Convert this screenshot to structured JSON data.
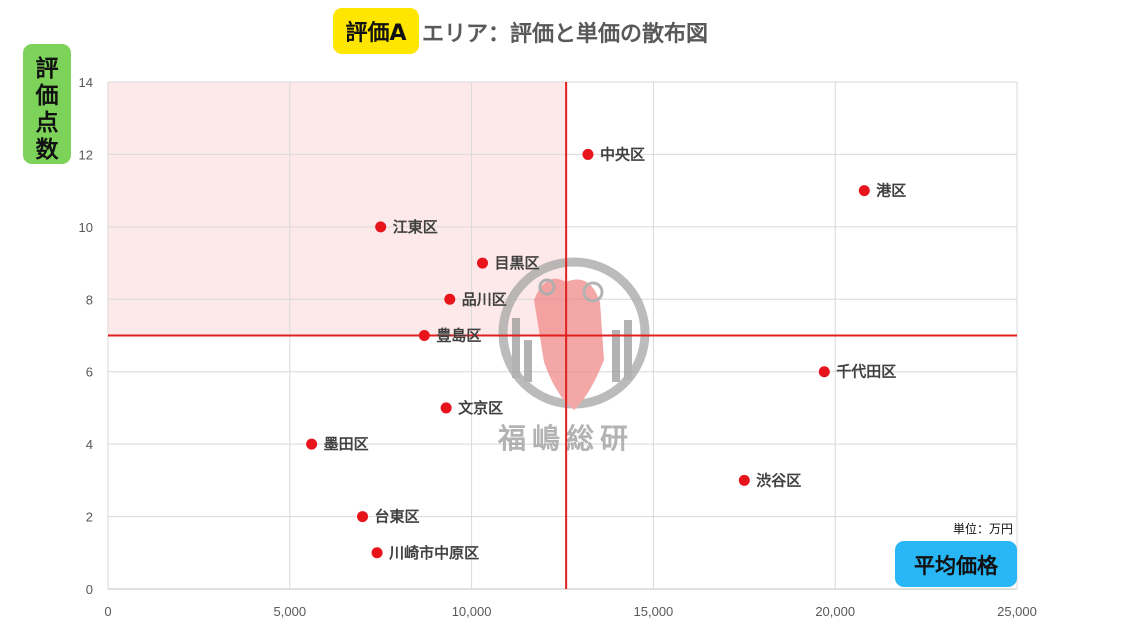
{
  "title": {
    "badge": "評価A",
    "text": "エリア：評価と単価の散布図",
    "badge_color": "#ffe600"
  },
  "ylabel": {
    "text": "評価点数",
    "color": "#7dd35a"
  },
  "xlabel": {
    "text": "平均価格",
    "color": "#29b6f6"
  },
  "unit_note": "単位：万円",
  "watermark": {
    "text": "福嶋総研",
    "icon": "logo-emblem-icon"
  },
  "chart_data": {
    "type": "scatter",
    "xlim": [
      0,
      25000
    ],
    "ylim": [
      0,
      14
    ],
    "x_ticks": [
      0,
      5000,
      10000,
      15000,
      20000,
      25000
    ],
    "x_tick_labels": [
      "0",
      "5,000",
      "10,000",
      "15,000",
      "20,000",
      "25,000"
    ],
    "y_ticks": [
      0,
      2,
      4,
      6,
      8,
      10,
      12,
      14
    ],
    "y_tick_labels": [
      "0",
      "2",
      "4",
      "6",
      "8",
      "10",
      "12",
      "14"
    ],
    "grid": true,
    "point_color": "#e8141c",
    "quadrant_lines": {
      "x": 12600,
      "y": 7,
      "color": "#e02020"
    },
    "highlight_region": {
      "x": [
        0,
        12600
      ],
      "y": [
        7,
        14
      ],
      "color": "#fde9e9"
    },
    "points": [
      {
        "label": "中央区",
        "x": 13200,
        "y": 12
      },
      {
        "label": "港区",
        "x": 20800,
        "y": 11
      },
      {
        "label": "江東区",
        "x": 7500,
        "y": 10
      },
      {
        "label": "目黒区",
        "x": 10300,
        "y": 9
      },
      {
        "label": "品川区",
        "x": 9400,
        "y": 8
      },
      {
        "label": "豊島区",
        "x": 8700,
        "y": 7
      },
      {
        "label": "千代田区",
        "x": 19700,
        "y": 6
      },
      {
        "label": "文京区",
        "x": 9300,
        "y": 5
      },
      {
        "label": "墨田区",
        "x": 5600,
        "y": 4
      },
      {
        "label": "渋谷区",
        "x": 17500,
        "y": 3
      },
      {
        "label": "台東区",
        "x": 7000,
        "y": 2
      },
      {
        "label": "川崎市中原区",
        "x": 7400,
        "y": 1
      }
    ]
  }
}
